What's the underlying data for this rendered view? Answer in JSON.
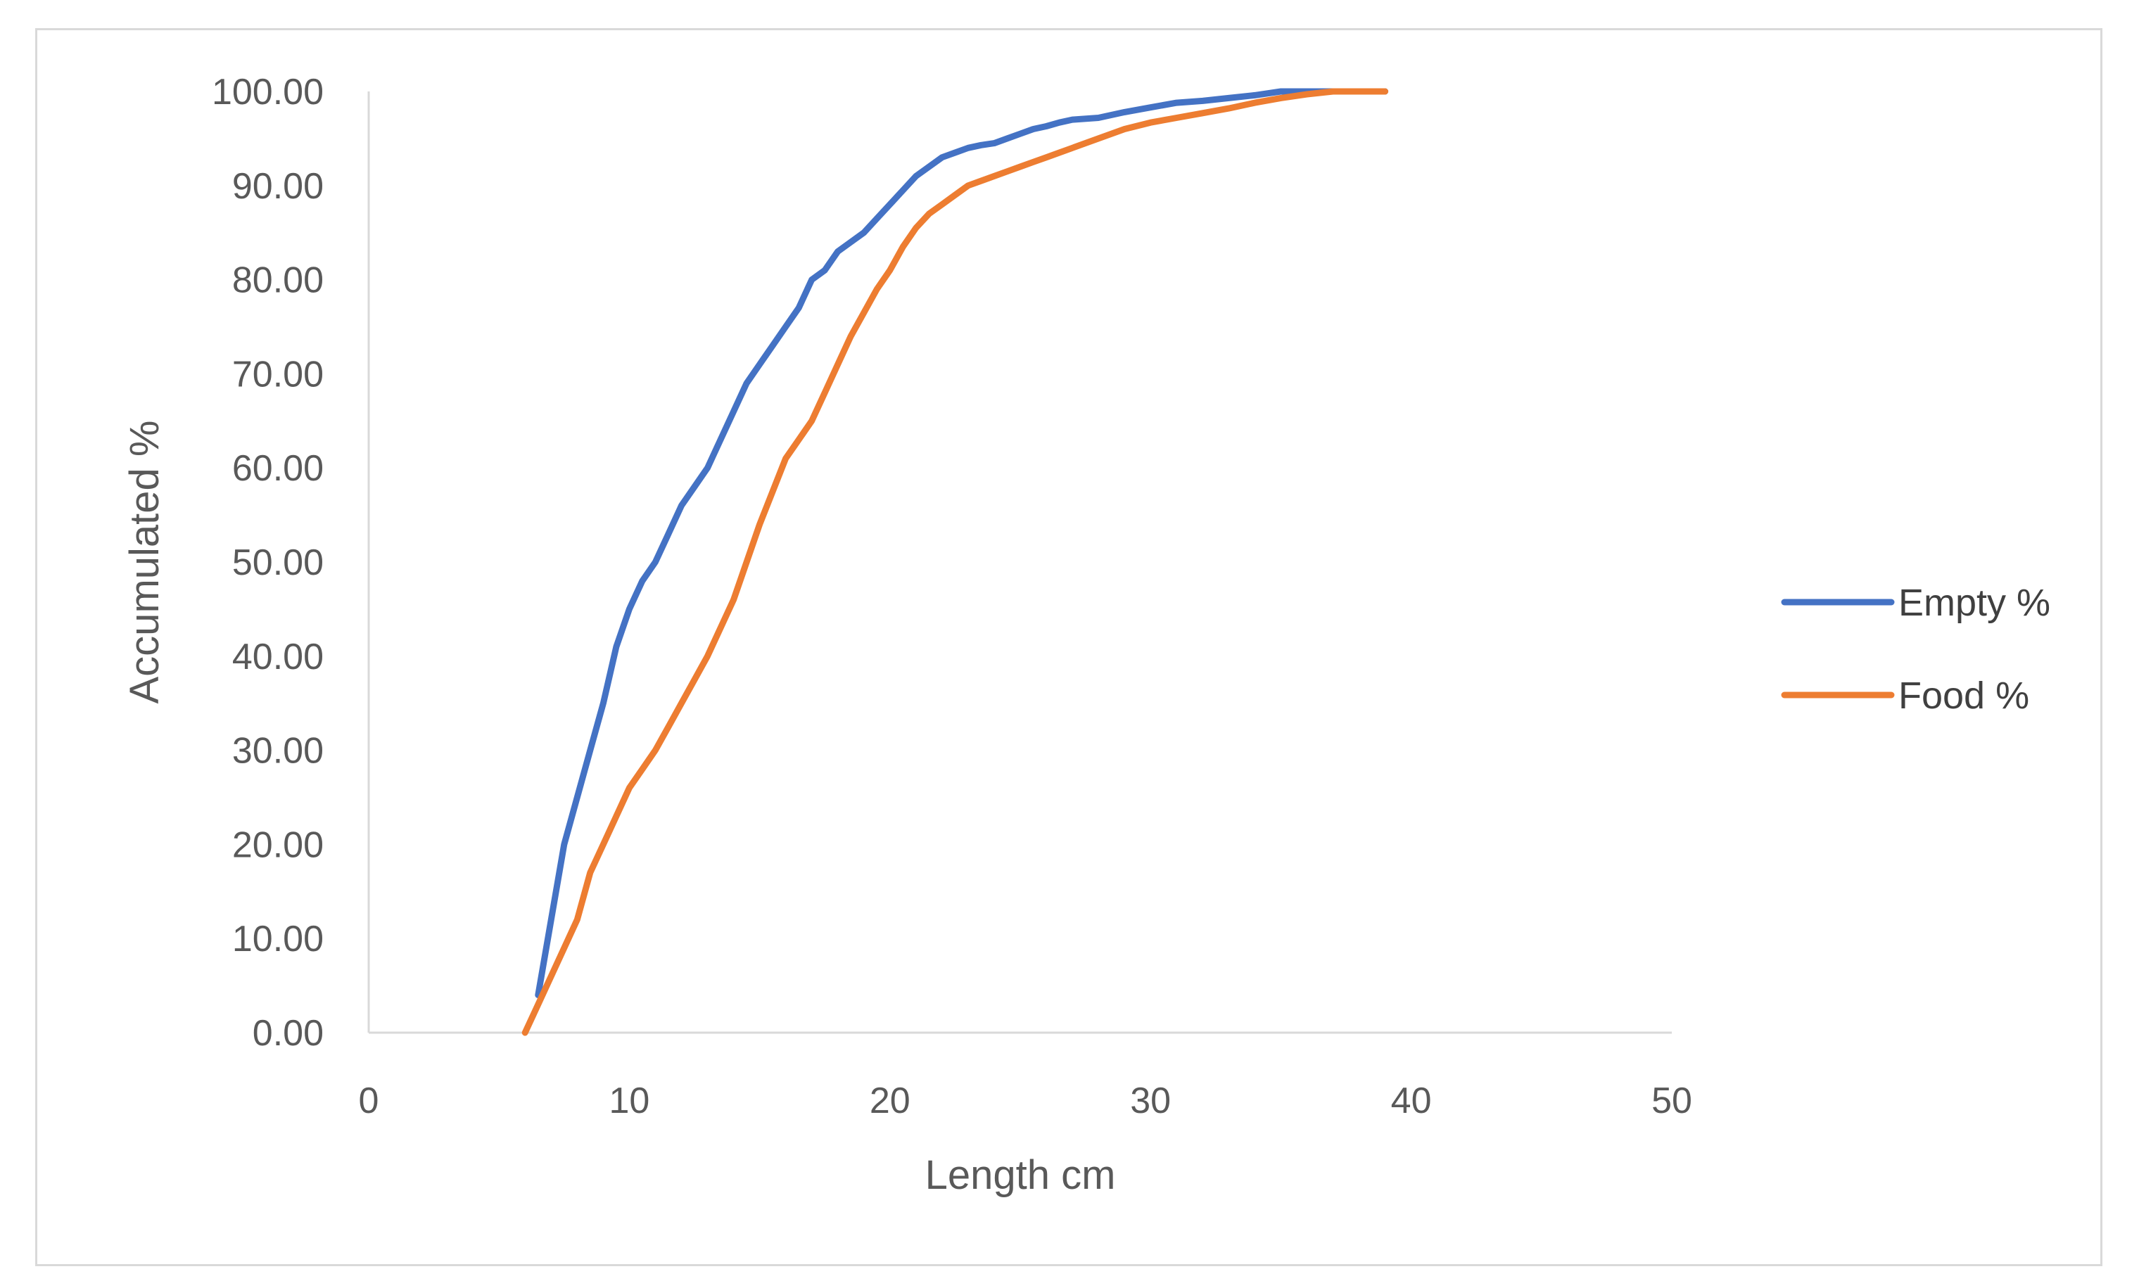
{
  "chart_data": {
    "type": "line",
    "xlabel": "Length cm",
    "ylabel": "Accumulated %",
    "xlim": [
      0,
      50
    ],
    "ylim": [
      0,
      100
    ],
    "x_ticks": [
      "0",
      "10",
      "20",
      "30",
      "40",
      "50"
    ],
    "y_ticks": [
      "0.00",
      "10.00",
      "20.00",
      "30.00",
      "40.00",
      "50.00",
      "60.00",
      "70.00",
      "80.00",
      "90.00",
      "100.00"
    ],
    "grid": false,
    "legend_position": "right",
    "series": [
      {
        "name": "Empty %",
        "color": "#4472c4",
        "x": [
          6.5,
          7.0,
          7.5,
          8.0,
          8.5,
          9.0,
          9.5,
          10.0,
          10.5,
          11.0,
          11.5,
          12.0,
          12.5,
          13.0,
          13.5,
          14.0,
          14.5,
          15.0,
          15.5,
          16.0,
          16.5,
          17.0,
          17.5,
          18.0,
          18.5,
          19.0,
          19.5,
          20.0,
          20.5,
          21.0,
          21.5,
          22.0,
          22.5,
          23.0,
          23.5,
          24.0,
          24.5,
          25.0,
          25.5,
          26.0,
          26.5,
          27.0,
          28.0,
          29.0,
          30.0,
          31.0,
          32.0,
          33.0,
          34.0,
          35.0,
          36.0,
          37.0,
          38.0,
          39.0
        ],
        "y": [
          4.0,
          12.0,
          20.0,
          25.0,
          30.0,
          35.0,
          41.0,
          45.0,
          48.0,
          50.0,
          53.0,
          56.0,
          58.0,
          60.0,
          63.0,
          66.0,
          69.0,
          71.0,
          73.0,
          75.0,
          77.0,
          80.0,
          81.0,
          83.0,
          84.0,
          85.0,
          86.5,
          88.0,
          89.5,
          91.0,
          92.0,
          93.0,
          93.5,
          94.0,
          94.3,
          94.5,
          95.0,
          95.5,
          96.0,
          96.3,
          96.7,
          97.0,
          97.2,
          97.8,
          98.3,
          98.8,
          99.0,
          99.3,
          99.6,
          100.0,
          100.0,
          100.0,
          100.0,
          100.0
        ]
      },
      {
        "name": "Food %",
        "color": "#ed7d31",
        "x": [
          6.0,
          6.5,
          7.0,
          7.5,
          8.0,
          8.5,
          9.0,
          9.5,
          10.0,
          10.5,
          11.0,
          11.5,
          12.0,
          12.5,
          13.0,
          13.5,
          14.0,
          14.5,
          15.0,
          15.5,
          16.0,
          16.5,
          17.0,
          17.5,
          18.0,
          18.5,
          19.0,
          19.5,
          20.0,
          20.5,
          21.0,
          21.5,
          22.0,
          22.5,
          23.0,
          23.5,
          24.0,
          24.5,
          25.0,
          25.5,
          26.0,
          26.5,
          27.0,
          28.0,
          29.0,
          30.0,
          31.0,
          32.0,
          33.0,
          34.0,
          35.0,
          36.0,
          37.0,
          38.0,
          39.0
        ],
        "y": [
          0.0,
          3.0,
          6.0,
          9.0,
          12.0,
          17.0,
          20.0,
          23.0,
          26.0,
          28.0,
          30.0,
          32.5,
          35.0,
          37.5,
          40.0,
          43.0,
          46.0,
          50.0,
          54.0,
          57.5,
          61.0,
          63.0,
          65.0,
          68.0,
          71.0,
          74.0,
          76.5,
          79.0,
          81.0,
          83.5,
          85.5,
          87.0,
          88.0,
          89.0,
          90.0,
          90.5,
          91.0,
          91.5,
          92.0,
          92.5,
          93.0,
          93.5,
          94.0,
          95.0,
          96.0,
          96.7,
          97.2,
          97.7,
          98.2,
          98.8,
          99.3,
          99.7,
          100.0,
          100.0,
          100.0
        ]
      }
    ]
  }
}
